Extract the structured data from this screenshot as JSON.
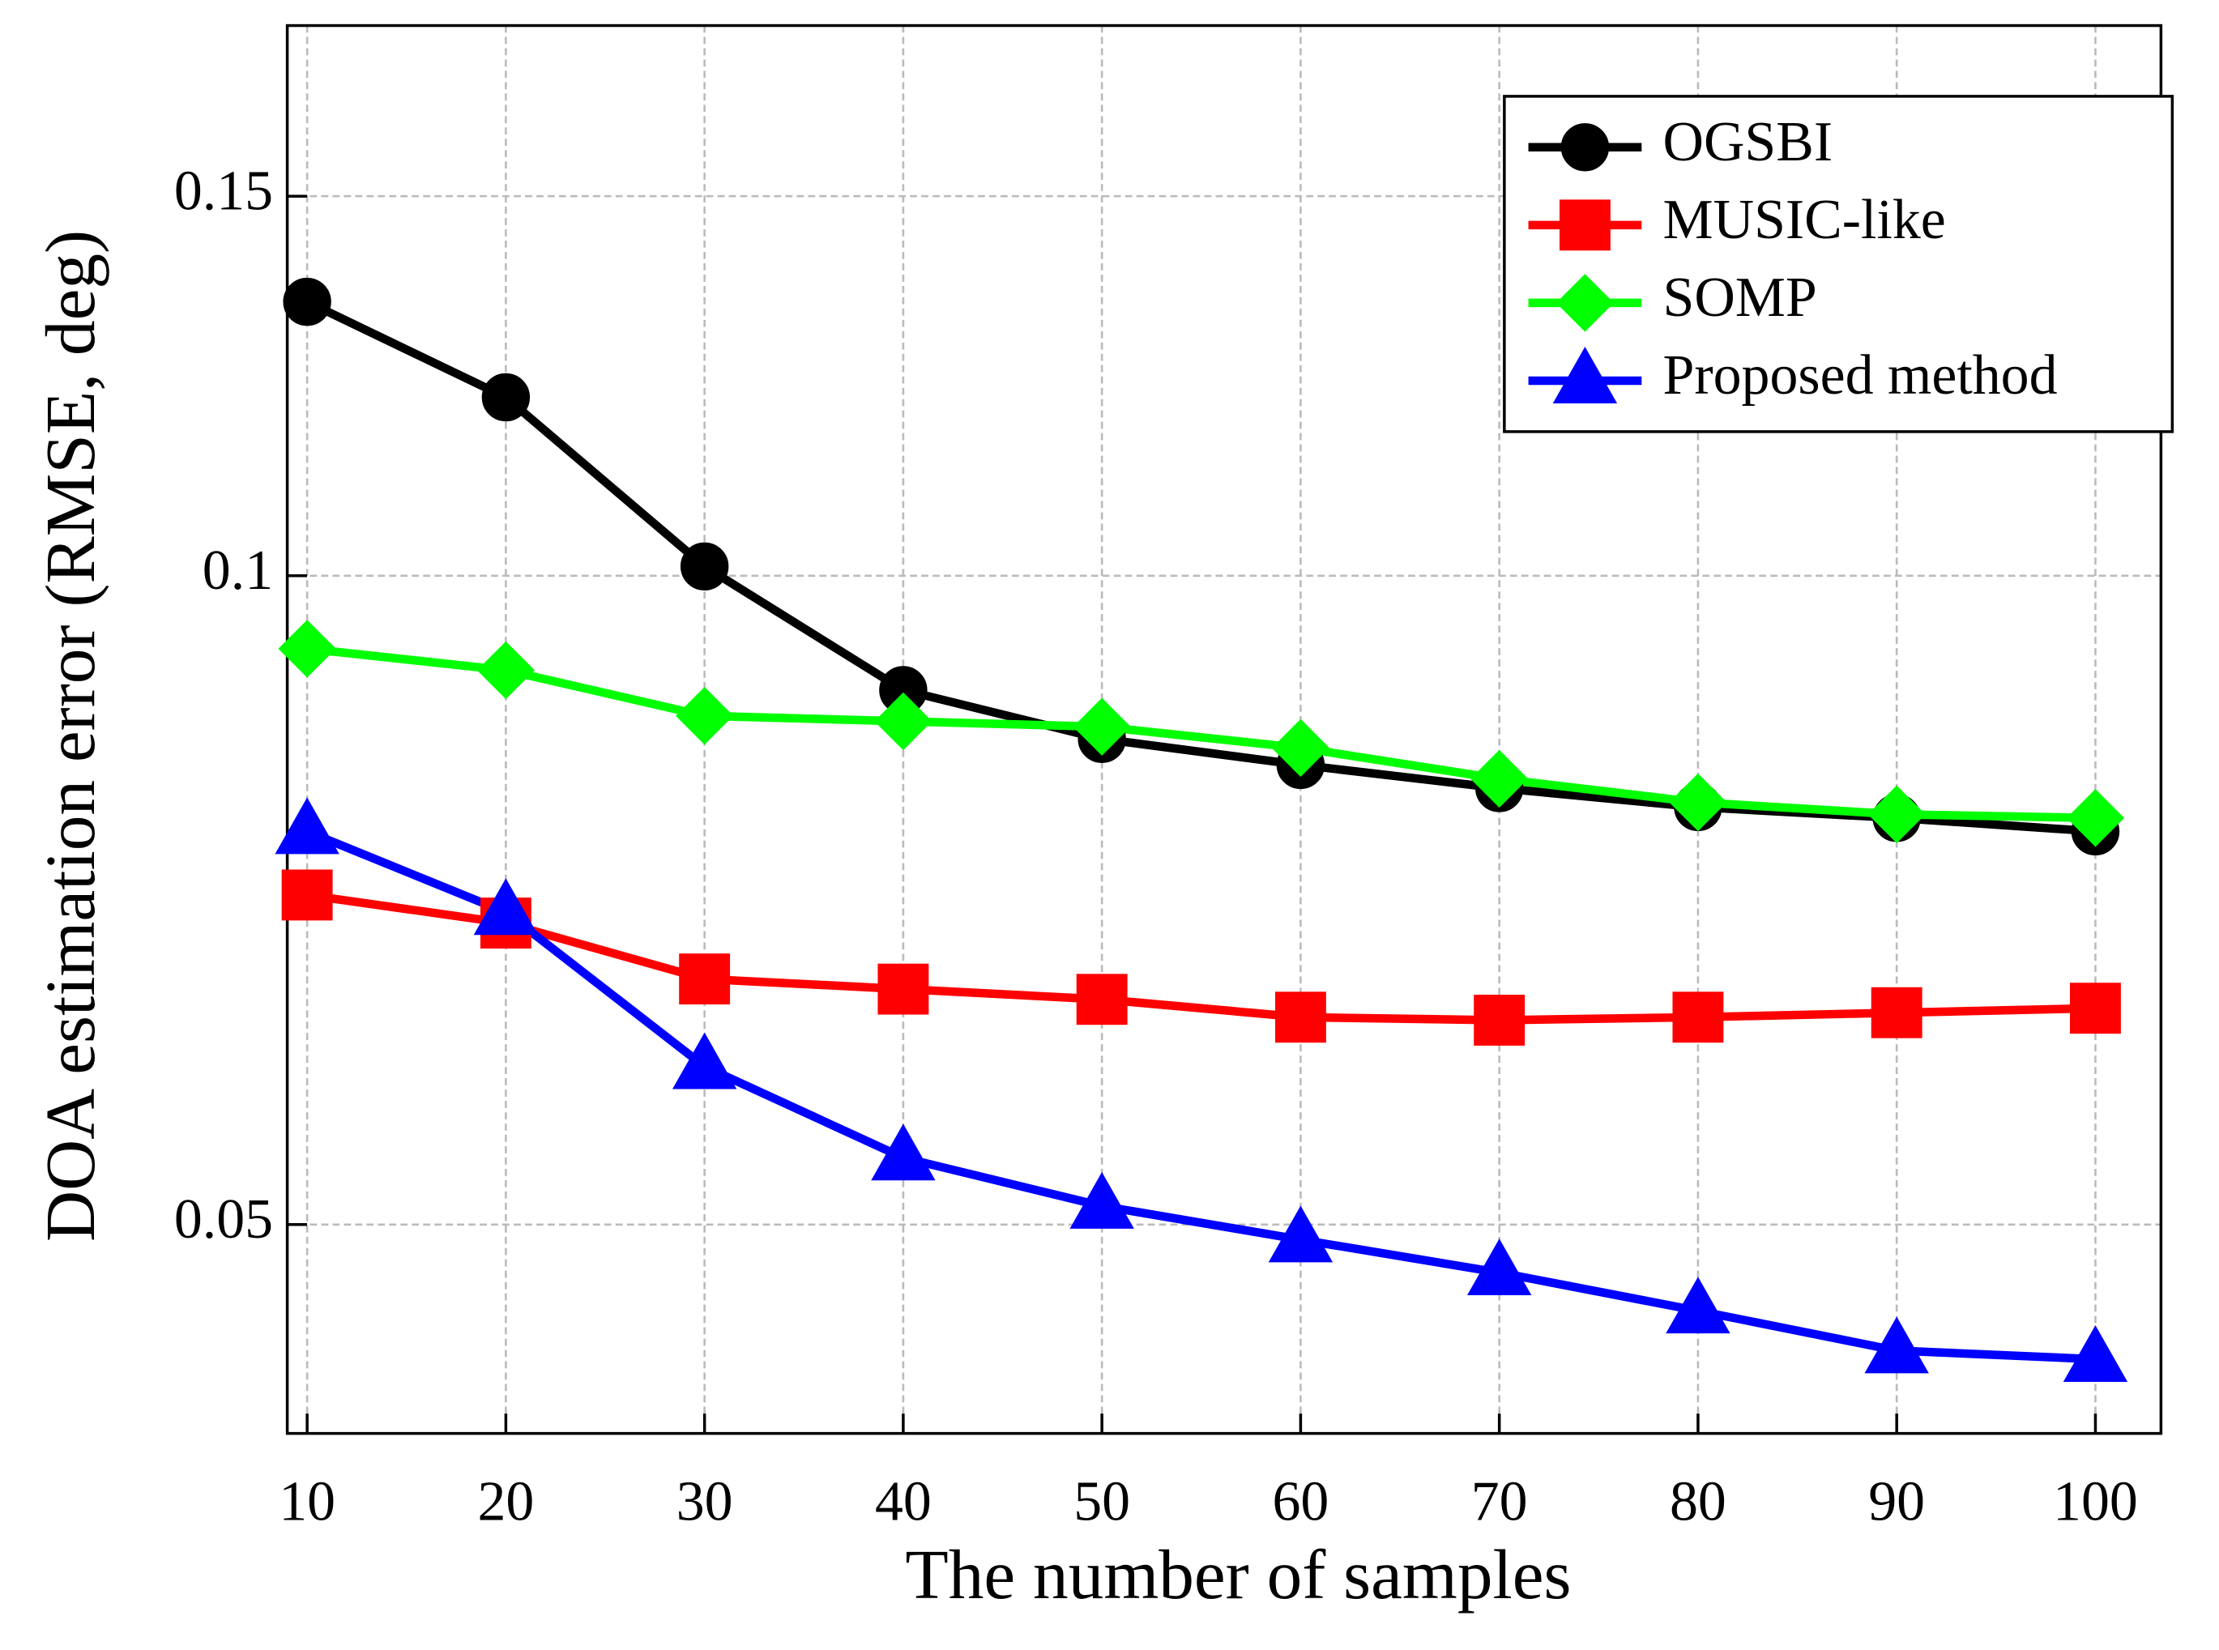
{
  "chart_data": {
    "type": "line",
    "xlabel": "The number of samples",
    "ylabel": "DOA estimation error (RMSE, deg)",
    "x": [
      10,
      20,
      30,
      40,
      50,
      60,
      70,
      80,
      90,
      100
    ],
    "series": [
      {
        "name": "OGSBI",
        "color": "#000000",
        "marker": "circle",
        "values": [
          0.134,
          0.121,
          0.101,
          0.0885,
          0.084,
          0.0817,
          0.0797,
          0.0781,
          0.0772,
          0.0761
        ]
      },
      {
        "name": "MUSIC-like",
        "color": "#ff0000",
        "marker": "square",
        "values": [
          0.0711,
          0.069,
          0.065,
          0.0643,
          0.0636,
          0.0624,
          0.0622,
          0.0624,
          0.0627,
          0.063
        ]
      },
      {
        "name": "SOMP",
        "color": "#00ff00",
        "marker": "diamond",
        "values": [
          0.0925,
          0.0904,
          0.0861,
          0.0856,
          0.0851,
          0.0832,
          0.0805,
          0.0785,
          0.0775,
          0.0772
        ]
      },
      {
        "name": "Proposed method",
        "color": "#0000ff",
        "marker": "triangle",
        "values": [
          0.0761,
          0.0698,
          0.0592,
          0.0537,
          0.051,
          0.0492,
          0.0475,
          0.0456,
          0.0437,
          0.0433
        ]
      }
    ],
    "xlim": [
      9,
      103.3
    ],
    "xticks": [
      10,
      20,
      30,
      40,
      50,
      60,
      70,
      80,
      90,
      100
    ],
    "ylim": [
      0.04,
      0.18
    ],
    "yticks": [
      0.05,
      0.1,
      0.15
    ],
    "yscale": "log",
    "grid": true,
    "legend": "upper right"
  }
}
